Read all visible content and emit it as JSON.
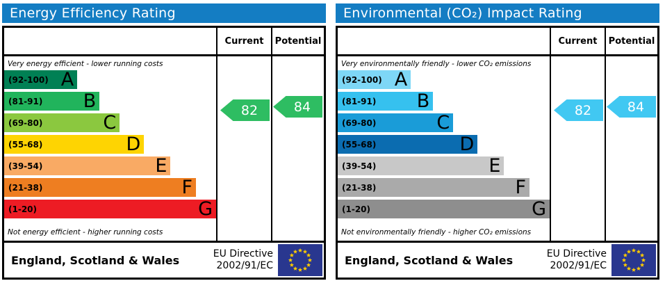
{
  "panels": [
    {
      "id": "energy-efficiency",
      "title": "Energy Efficiency Rating",
      "header_color": "#147dc3",
      "columns": {
        "current": "Current",
        "potential": "Potential"
      },
      "top_note": "Very energy efficient - lower running costs",
      "bottom_note": "Not energy efficient - higher running costs",
      "bands": [
        {
          "range": "(92-100)",
          "letter": "A",
          "color": "#008054",
          "width_pct": 34.5
        },
        {
          "range": "(81-91)",
          "letter": "B",
          "color": "#21b45c",
          "width_pct": 45
        },
        {
          "range": "(69-80)",
          "letter": "C",
          "color": "#8bc83f",
          "width_pct": 54.5
        },
        {
          "range": "(55-68)",
          "letter": "D",
          "color": "#fed402",
          "width_pct": 66
        },
        {
          "range": "(39-54)",
          "letter": "E",
          "color": "#f9aa64",
          "width_pct": 78.5
        },
        {
          "range": "(21-38)",
          "letter": "F",
          "color": "#ee7e21",
          "width_pct": 90.5
        },
        {
          "range": "(1-20)",
          "letter": "G",
          "color": "#ed1c24",
          "width_pct": 100
        }
      ],
      "current": {
        "value": "82",
        "band": "B",
        "color": "#2ebd62"
      },
      "potential": {
        "value": "84",
        "band": "B",
        "color": "#2ebd62"
      },
      "footer": {
        "region": "England, Scotland & Wales",
        "directive_line1": "EU Directive",
        "directive_line2": "2002/91/EC",
        "flag": {
          "background": "#29378f",
          "star_color": "#ffcc00"
        }
      }
    },
    {
      "id": "environmental-co2-impact",
      "title": "Environmental (CO₂) Impact Rating",
      "header_color": "#147dc3",
      "columns": {
        "current": "Current",
        "potential": "Potential"
      },
      "top_note": "Very environmentally friendly - lower CO₂ emissions",
      "bottom_note": "Not environmentally friendly - higher CO₂ emissions",
      "bands": [
        {
          "range": "(92-100)",
          "letter": "A",
          "color": "#7ed7f6",
          "width_pct": 34.5
        },
        {
          "range": "(81-91)",
          "letter": "B",
          "color": "#36c1ef",
          "width_pct": 45
        },
        {
          "range": "(69-80)",
          "letter": "C",
          "color": "#1a9cd8",
          "width_pct": 54.5
        },
        {
          "range": "(55-68)",
          "letter": "D",
          "color": "#0b6cb0",
          "width_pct": 66
        },
        {
          "range": "(39-54)",
          "letter": "E",
          "color": "#c8c8c8",
          "width_pct": 78.5
        },
        {
          "range": "(21-38)",
          "letter": "F",
          "color": "#aaaaaa",
          "width_pct": 90.5
        },
        {
          "range": "(1-20)",
          "letter": "G",
          "color": "#8e8e8e",
          "width_pct": 100
        }
      ],
      "current": {
        "value": "82",
        "band": "B",
        "color": "#41c8f2"
      },
      "potential": {
        "value": "84",
        "band": "B",
        "color": "#41c8f2"
      },
      "footer": {
        "region": "England, Scotland & Wales",
        "directive_line1": "EU Directive",
        "directive_line2": "2002/91/EC",
        "flag": {
          "background": "#29378f",
          "star_color": "#ffcc00"
        }
      }
    }
  ],
  "chart_data": [
    {
      "type": "bar",
      "title": "Energy Efficiency Rating",
      "categories": [
        "A (92-100)",
        "B (81-91)",
        "C (69-80)",
        "D (55-68)",
        "E (39-54)",
        "F (21-38)",
        "G (1-20)"
      ],
      "values": [
        34.5,
        45,
        54.5,
        66,
        78.5,
        90.5,
        100
      ],
      "bar_colors": [
        "#008054",
        "#21b45c",
        "#8bc83f",
        "#fed402",
        "#f9aa64",
        "#ee7e21",
        "#ed1c24"
      ],
      "current": 82,
      "current_band": "B",
      "potential": 84,
      "potential_band": "B",
      "top_annotation": "Very energy efficient - lower running costs",
      "bottom_annotation": "Not energy efficient - higher running costs",
      "footer": "England, Scotland & Wales — EU Directive 2002/91/EC"
    },
    {
      "type": "bar",
      "title": "Environmental (CO₂) Impact Rating",
      "categories": [
        "A (92-100)",
        "B (81-91)",
        "C (69-80)",
        "D (55-68)",
        "E (39-54)",
        "F (21-38)",
        "G (1-20)"
      ],
      "values": [
        34.5,
        45,
        54.5,
        66,
        78.5,
        90.5,
        100
      ],
      "bar_colors": [
        "#7ed7f6",
        "#36c1ef",
        "#1a9cd8",
        "#0b6cb0",
        "#c8c8c8",
        "#aaaaaa",
        "#8e8e8e"
      ],
      "current": 82,
      "current_band": "B",
      "potential": 84,
      "potential_band": "B",
      "top_annotation": "Very environmentally friendly - lower CO₂ emissions",
      "bottom_annotation": "Not environmentally friendly - higher CO₂ emissions",
      "footer": "England, Scotland & Wales — EU Directive 2002/91/EC"
    }
  ]
}
